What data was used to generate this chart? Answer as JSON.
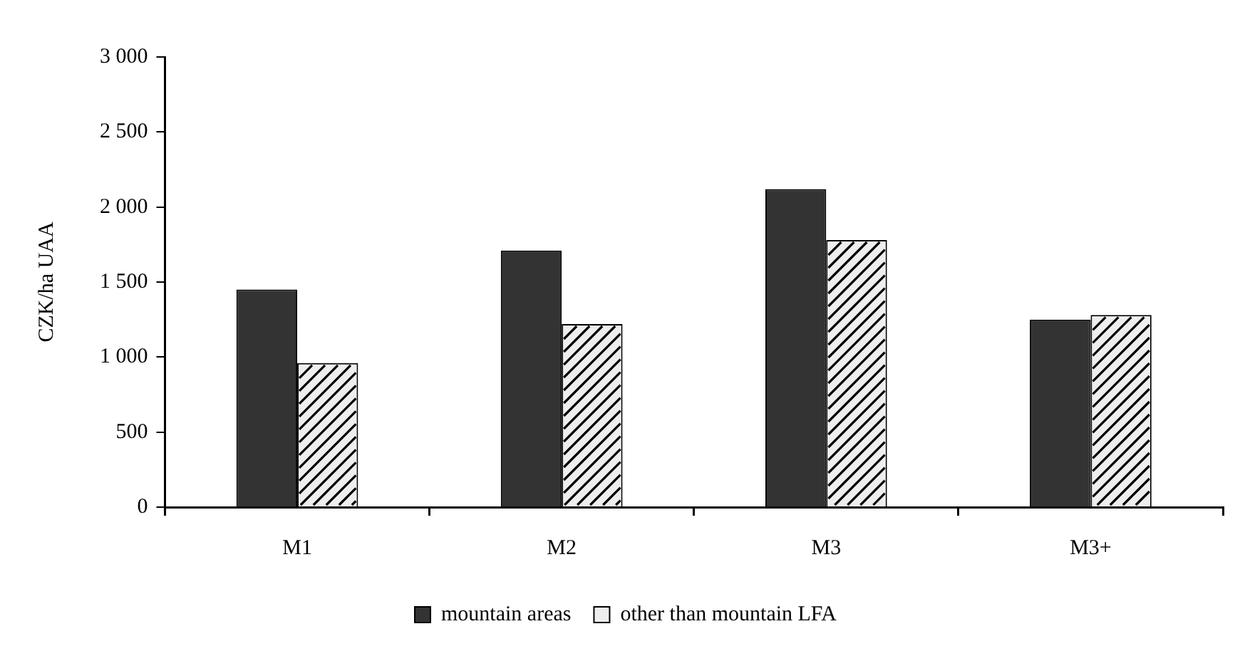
{
  "chart_data": {
    "type": "bar",
    "ylabel": "CZK/ha UAA",
    "categories": [
      "M1",
      "M2",
      "M3",
      "M3+"
    ],
    "series": [
      {
        "name": "mountain areas",
        "color": "#333333",
        "values": [
          1450,
          1710,
          2120,
          1250
        ]
      },
      {
        "name": "other than mountain LFA",
        "color": "#eeeeee",
        "values": [
          960,
          1220,
          1780,
          1280
        ]
      }
    ],
    "ylim": [
      0,
      3000
    ],
    "yticks": [
      {
        "value": 0,
        "label": "0"
      },
      {
        "value": 500,
        "label": "500"
      },
      {
        "value": 1000,
        "label": "1 000"
      },
      {
        "value": 1500,
        "label": "1 500"
      },
      {
        "value": 2000,
        "label": "2 000"
      },
      {
        "value": 2500,
        "label": "2 500"
      },
      {
        "value": 3000,
        "label": "3 000"
      }
    ],
    "grid": false,
    "legend": "bottom"
  }
}
